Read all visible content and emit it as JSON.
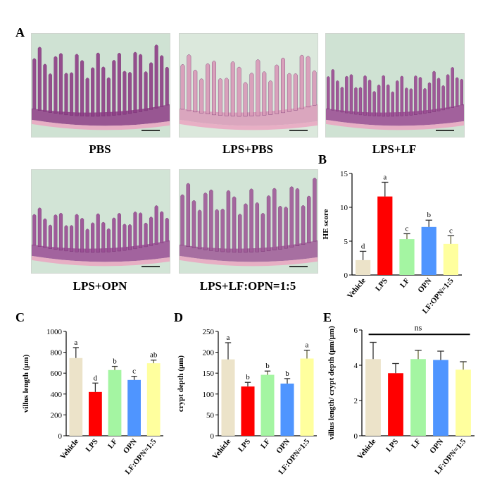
{
  "panel_labels": {
    "a": "A",
    "b": "B",
    "c": "C",
    "d": "D",
    "e": "E"
  },
  "micrographs": [
    {
      "caption": "PBS",
      "tissue_color": "#8e3d86",
      "bg_color": "#cfe2d3",
      "villus_count": 26,
      "villus_height": 0.62
    },
    {
      "caption": "LPS+PBS",
      "tissue_color": "#d99ab8",
      "bg_color": "#dbe8dc",
      "villus_count": 22,
      "villus_height": 0.55
    },
    {
      "caption": "LPS+LF",
      "tissue_color": "#9a4a92",
      "bg_color": "#cfe2d3",
      "villus_count": 30,
      "villus_height": 0.4
    },
    {
      "caption": "LPS+OPN",
      "tissue_color": "#9a4c94",
      "bg_color": "#d2e4d6",
      "villus_count": 26,
      "villus_height": 0.38
    },
    {
      "caption": "LPS+LF:OPN=1:5",
      "tissue_color": "#a05a98",
      "bg_color": "#d2e4d6",
      "villus_count": 24,
      "villus_height": 0.62
    }
  ],
  "chart_data": [
    {
      "id": "B",
      "type": "bar",
      "categories": [
        "Vehicle",
        "LPS",
        "LF",
        "OPN",
        "LF:OPN=1:5"
      ],
      "values": [
        2.2,
        11.6,
        5.3,
        7.1,
        4.6
      ],
      "errors": [
        1.3,
        2.1,
        0.8,
        1.0,
        1.2
      ],
      "letters": [
        "d",
        "a",
        "c",
        "b",
        "c"
      ],
      "ylabel": "HE score",
      "ylim": [
        0,
        15
      ],
      "yticks": [
        0,
        5,
        10,
        15
      ],
      "colors": [
        "#ece3c9",
        "#ff0000",
        "#a4f5a2",
        "#4f95ff",
        "#ffff9e"
      ],
      "grid": false
    },
    {
      "id": "C",
      "type": "bar",
      "categories": [
        "Vehicle",
        "LPS",
        "LF",
        "OPN",
        "LF:OPN=1:5"
      ],
      "values": [
        745,
        420,
        630,
        535,
        695
      ],
      "errors": [
        100,
        85,
        35,
        35,
        30
      ],
      "letters": [
        "a",
        "d",
        "b",
        "c",
        "ab"
      ],
      "ylabel": "villus length (μm)",
      "ylim": [
        0,
        1000
      ],
      "yticks": [
        0,
        200,
        400,
        600,
        800,
        1000
      ],
      "colors": [
        "#ece3c9",
        "#ff0000",
        "#a4f5a2",
        "#4f95ff",
        "#ffff9e"
      ],
      "grid": false
    },
    {
      "id": "D",
      "type": "bar",
      "categories": [
        "Vehicle",
        "LPS",
        "LF",
        "OPN",
        "LF:OPN=1:5"
      ],
      "values": [
        183,
        118,
        146,
        125,
        185
      ],
      "errors": [
        40,
        10,
        9,
        12,
        20
      ],
      "letters": [
        "a",
        "b",
        "b",
        "b",
        "a"
      ],
      "ylabel": "crypt depth (μm)",
      "ylim": [
        0,
        250
      ],
      "yticks": [
        0,
        50,
        100,
        150,
        200,
        250
      ],
      "colors": [
        "#ece3c9",
        "#ff0000",
        "#a4f5a2",
        "#4f95ff",
        "#ffff9e"
      ],
      "grid": false
    },
    {
      "id": "E",
      "type": "bar",
      "categories": [
        "Vehicle",
        "LPS",
        "LF",
        "OPN",
        "LF:OPN=1:5"
      ],
      "values": [
        4.35,
        3.55,
        4.35,
        4.3,
        3.75
      ],
      "errors": [
        0.95,
        0.55,
        0.5,
        0.5,
        0.45
      ],
      "letters": [
        "",
        "",
        "",
        "",
        ""
      ],
      "ylabel": "villus length/ crypt depth (μm/μm)",
      "ylim": [
        0,
        6
      ],
      "yticks": [
        0,
        2,
        4,
        6
      ],
      "colors": [
        "#ece3c9",
        "#ff0000",
        "#a4f5a2",
        "#4f95ff",
        "#ffff9e"
      ],
      "significance": "ns",
      "grid": false
    }
  ]
}
